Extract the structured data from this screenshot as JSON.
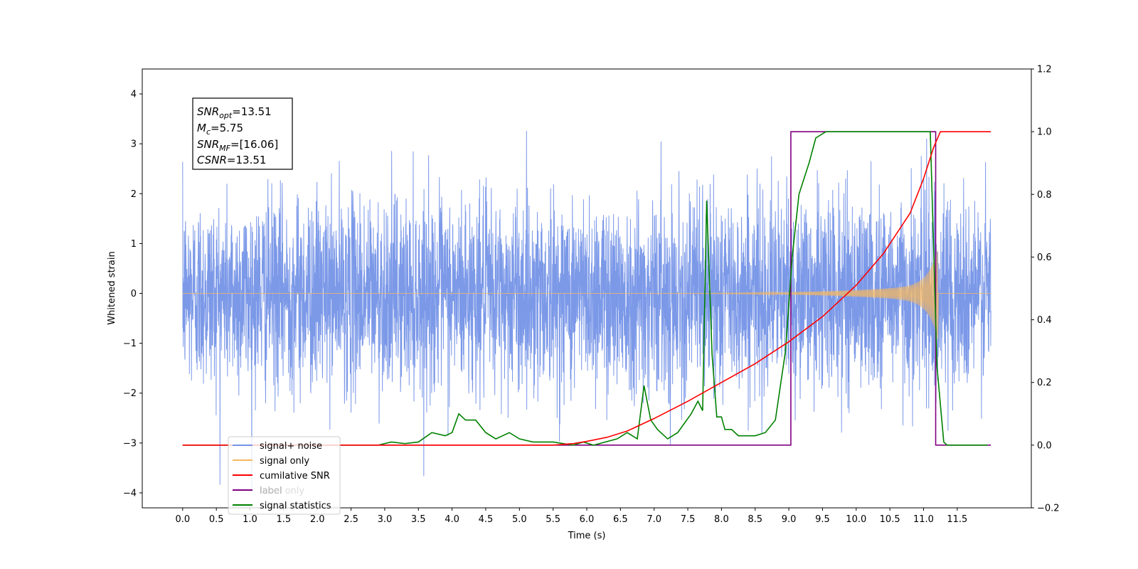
{
  "chart_data": {
    "type": "line",
    "xlabel": "Time (s)",
    "ylabel": "Whitened strain",
    "xlim": [
      -0.6,
      12.6
    ],
    "ylim": [
      -4.3,
      4.5
    ],
    "y2lim": [
      -0.2,
      1.2
    ],
    "x_ticks": [
      0.0,
      0.5,
      1.0,
      1.5,
      2.0,
      2.5,
      3.0,
      3.5,
      4.0,
      4.5,
      5.0,
      5.5,
      6.0,
      6.5,
      7.0,
      7.5,
      8.0,
      8.5,
      9.0,
      9.5,
      10.0,
      10.5,
      11.0,
      11.5
    ],
    "x_tick_labels": [
      "0.0",
      "0.5",
      "1.0",
      "1.5",
      "2.0",
      "2.5",
      "3.0",
      "3.5",
      "4.0",
      "4.5",
      "5.0",
      "5.5",
      "6.0",
      "6.5",
      "7.0",
      "7.5",
      "8.0",
      "8.5",
      "9.0",
      "9.5",
      "10.0",
      "10.5",
      "11.0",
      "11.5"
    ],
    "y_ticks": [
      -4,
      -3,
      -2,
      -1,
      0,
      1,
      2,
      3,
      4
    ],
    "y_tick_labels": [
      "−4",
      "−3",
      "−2",
      "−1",
      "0",
      "1",
      "2",
      "3",
      "4"
    ],
    "y2_ticks": [
      -0.2,
      0.0,
      0.2,
      0.4,
      0.6,
      0.8,
      1.0,
      1.2
    ],
    "y2_tick_labels": [
      "−0.2",
      "0.0",
      "0.2",
      "0.4",
      "0.6",
      "0.8",
      "1.0",
      "1.2"
    ],
    "grid": false,
    "legend_position": "bottom-left",
    "noise": {
      "x_range": [
        0.0,
        12.0
      ],
      "std": 0.95,
      "max_abs": 4.1
    },
    "signal": {
      "x_range": [
        0.0,
        12.0
      ],
      "onset": 5.5,
      "merger": 11.2,
      "peak_amplitude": 0.85
    },
    "annotation": {
      "lines": [
        {
          "main": "SNR",
          "sub": "opt",
          "rest": "=13.51"
        },
        {
          "main": "M",
          "sub": "c",
          "rest": "=5.75"
        },
        {
          "main": "SNR",
          "sub": "MF",
          "rest": "=[16.06]"
        },
        {
          "main": "CSNR",
          "sub": "",
          "rest": "=13.51"
        }
      ]
    },
    "series": [
      {
        "name": "signal+ noise",
        "color": "#7594e7",
        "axis": "left"
      },
      {
        "name": "signal only",
        "color": "#f5b860",
        "axis": "left"
      },
      {
        "name": "cumilative SNR",
        "color": "#ff0000",
        "axis": "right",
        "x": [
          0.0,
          5.5,
          5.8,
          6.0,
          6.3,
          6.6,
          7.0,
          7.5,
          8.0,
          8.5,
          9.0,
          9.5,
          10.0,
          10.4,
          10.8,
          11.0,
          11.15,
          11.25,
          12.0
        ],
        "values": [
          0.0,
          0.0,
          0.005,
          0.012,
          0.025,
          0.045,
          0.085,
          0.14,
          0.2,
          0.26,
          0.33,
          0.41,
          0.51,
          0.61,
          0.74,
          0.85,
          0.95,
          1.0,
          1.0
        ]
      },
      {
        "name": "label",
        "color": "#800080",
        "axis": "right",
        "x": [
          0.0,
          9.03,
          9.03,
          11.18,
          11.18,
          12.0
        ],
        "values": [
          0.0,
          0.0,
          1.0,
          1.0,
          0.0,
          0.0
        ]
      },
      {
        "name": "label only",
        "color": "#aaaaaa",
        "axis": "right",
        "x": [],
        "values": []
      },
      {
        "name": "signal statistics",
        "color": "#008000",
        "axis": "right",
        "x": [
          0.0,
          2.9,
          3.1,
          3.3,
          3.5,
          3.7,
          3.9,
          4.0,
          4.1,
          4.2,
          4.35,
          4.5,
          4.65,
          4.85,
          5.0,
          5.2,
          5.5,
          5.8,
          5.95,
          6.1,
          6.45,
          6.6,
          6.75,
          6.85,
          6.95,
          7.05,
          7.2,
          7.35,
          7.55,
          7.65,
          7.72,
          7.78,
          7.86,
          7.93,
          8.0,
          8.05,
          8.15,
          8.25,
          8.35,
          8.5,
          8.65,
          8.8,
          8.95,
          9.05,
          9.15,
          9.3,
          9.4,
          9.55,
          9.7,
          10.0,
          11.1,
          11.2,
          11.3,
          11.35,
          11.4,
          11.5,
          11.6,
          11.95
        ],
        "values": [
          0.0,
          0.0,
          0.01,
          0.005,
          0.01,
          0.04,
          0.03,
          0.04,
          0.1,
          0.08,
          0.08,
          0.04,
          0.02,
          0.04,
          0.02,
          0.01,
          0.01,
          0.0,
          0.01,
          0.0,
          0.02,
          0.04,
          0.02,
          0.19,
          0.08,
          0.05,
          0.02,
          0.04,
          0.1,
          0.14,
          0.11,
          0.78,
          0.29,
          0.09,
          0.09,
          0.05,
          0.05,
          0.03,
          0.03,
          0.03,
          0.04,
          0.08,
          0.3,
          0.6,
          0.8,
          0.9,
          0.98,
          1.0,
          1.0,
          1.0,
          1.0,
          0.25,
          0.01,
          0.0,
          0.0,
          0.0,
          0.0,
          0.0
        ]
      }
    ]
  }
}
